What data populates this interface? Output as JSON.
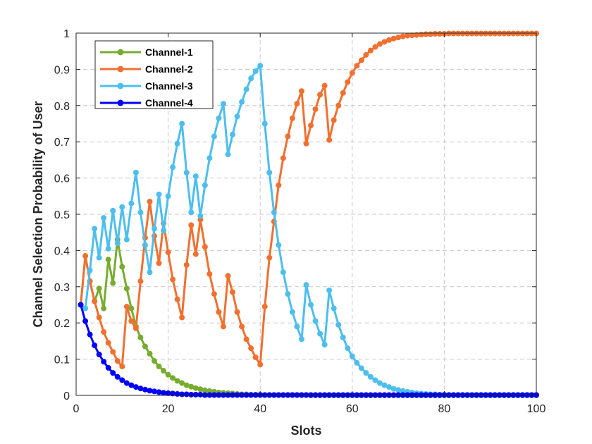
{
  "chart_data": {
    "type": "line",
    "title": "",
    "xlabel": "Slots",
    "ylabel": "Channel Selection Probability of User",
    "xlim": [
      0,
      100
    ],
    "ylim": [
      0,
      1
    ],
    "xticks": [
      "0",
      "20",
      "40",
      "60",
      "80",
      "100"
    ],
    "yticks": [
      "0",
      "0.1",
      "0.2",
      "0.3",
      "0.4",
      "0.5",
      "0.6",
      "0.7",
      "0.8",
      "0.9",
      "1"
    ],
    "grid": true,
    "legend_position": "top-left",
    "x": [
      1,
      2,
      3,
      4,
      5,
      6,
      7,
      8,
      9,
      10,
      11,
      12,
      13,
      14,
      15,
      16,
      17,
      18,
      19,
      20,
      21,
      22,
      23,
      24,
      25,
      26,
      27,
      28,
      29,
      30,
      31,
      32,
      33,
      34,
      35,
      36,
      37,
      38,
      39,
      40,
      41,
      42,
      43,
      44,
      45,
      46,
      47,
      48,
      49,
      50,
      51,
      52,
      53,
      54,
      55,
      56,
      57,
      58,
      59,
      60,
      61,
      62,
      63,
      64,
      65,
      66,
      67,
      68,
      69,
      70,
      71,
      72,
      73,
      74,
      75,
      76,
      77,
      78,
      79,
      80,
      81,
      82,
      83,
      84,
      85,
      86,
      87,
      88,
      89,
      90,
      91,
      92,
      93,
      94,
      95,
      96,
      97,
      98,
      99,
      100
    ],
    "series": [
      {
        "name": "Channel-1",
        "color": "#77AC30",
        "values": [
          0.25,
          0.385,
          0.315,
          0.26,
          0.295,
          0.24,
          0.375,
          0.31,
          0.43,
          0.355,
          0.295,
          0.24,
          0.19,
          0.16,
          0.135,
          0.115,
          0.095,
          0.08,
          0.068,
          0.057,
          0.048,
          0.04,
          0.034,
          0.028,
          0.024,
          0.02,
          0.017,
          0.014,
          0.012,
          0.01,
          0.008,
          0.007,
          0.006,
          0.005,
          0.004,
          0.003,
          0.003,
          0.002,
          0.002,
          0.002,
          0.001,
          0.001,
          0.001,
          0.001,
          0.001,
          0.001,
          0.001,
          0.001,
          0.001,
          0.001,
          0,
          0,
          0,
          0,
          0,
          0,
          0,
          0,
          0,
          0,
          0,
          0,
          0,
          0,
          0,
          0,
          0,
          0,
          0,
          0,
          0,
          0,
          0,
          0,
          0,
          0,
          0,
          0,
          0,
          0,
          0,
          0,
          0,
          0,
          0,
          0,
          0,
          0,
          0,
          0,
          0,
          0,
          0,
          0,
          0,
          0,
          0,
          0,
          0,
          0
        ]
      },
      {
        "name": "Channel-2",
        "color": "#F07030",
        "values": [
          0.25,
          0.385,
          0.315,
          0.26,
          0.215,
          0.175,
          0.145,
          0.12,
          0.095,
          0.08,
          0.245,
          0.205,
          0.185,
          0.315,
          0.435,
          0.535,
          0.44,
          0.365,
          0.475,
          0.395,
          0.32,
          0.265,
          0.215,
          0.36,
          0.47,
          0.39,
          0.485,
          0.41,
          0.335,
          0.28,
          0.23,
          0.19,
          0.33,
          0.285,
          0.23,
          0.19,
          0.155,
          0.13,
          0.105,
          0.085,
          0.245,
          0.38,
          0.48,
          0.58,
          0.655,
          0.715,
          0.765,
          0.805,
          0.84,
          0.695,
          0.745,
          0.79,
          0.83,
          0.855,
          0.705,
          0.76,
          0.8,
          0.835,
          0.865,
          0.89,
          0.91,
          0.925,
          0.94,
          0.952,
          0.962,
          0.97,
          0.976,
          0.981,
          0.985,
          0.988,
          0.991,
          0.993,
          0.994,
          0.995,
          0.996,
          0.997,
          0.997,
          0.998,
          0.998,
          0.998,
          0.999,
          0.999,
          0.999,
          0.999,
          0.999,
          0.999,
          0.999,
          0.999,
          0.999,
          0.999,
          0.999,
          0.999,
          0.999,
          0.999,
          0.999,
          0.999,
          0.999,
          0.999,
          0.999,
          0.999
        ]
      },
      {
        "name": "Channel-3",
        "color": "#4DBEEE",
        "values": [
          0.25,
          0.24,
          0.345,
          0.46,
          0.38,
          0.49,
          0.405,
          0.51,
          0.42,
          0.52,
          0.43,
          0.53,
          0.615,
          0.505,
          0.415,
          0.34,
          0.46,
          0.555,
          0.455,
          0.55,
          0.63,
          0.695,
          0.75,
          0.615,
          0.505,
          0.605,
          0.495,
          0.58,
          0.655,
          0.715,
          0.765,
          0.805,
          0.665,
          0.72,
          0.77,
          0.81,
          0.845,
          0.875,
          0.895,
          0.91,
          0.75,
          0.615,
          0.505,
          0.415,
          0.34,
          0.28,
          0.23,
          0.19,
          0.155,
          0.305,
          0.25,
          0.205,
          0.17,
          0.14,
          0.29,
          0.24,
          0.195,
          0.16,
          0.13,
          0.108,
          0.09,
          0.075,
          0.062,
          0.051,
          0.042,
          0.034,
          0.028,
          0.023,
          0.018,
          0.015,
          0.012,
          0.01,
          0.008,
          0.006,
          0.005,
          0.004,
          0.003,
          0.003,
          0.002,
          0.002,
          0.001,
          0.001,
          0.001,
          0.001,
          0.001,
          0.001,
          0.001,
          0.001,
          0.001,
          0.001,
          0.001,
          0.001,
          0.001,
          0.001,
          0.001,
          0.001,
          0.001,
          0.001,
          0.001,
          0.001
        ]
      },
      {
        "name": "Channel-4",
        "color": "#0000FF",
        "values": [
          0.25,
          0.205,
          0.168,
          0.138,
          0.113,
          0.093,
          0.076,
          0.062,
          0.051,
          0.042,
          0.034,
          0.028,
          0.023,
          0.019,
          0.016,
          0.013,
          0.011,
          0.009,
          0.007,
          0.006,
          0.005,
          0.004,
          0.003,
          0.003,
          0.002,
          0.002,
          0.002,
          0.001,
          0.001,
          0.001,
          0.001,
          0.001,
          0.001,
          0.001,
          0.001,
          0.001,
          0.001,
          0.001,
          0.001,
          0.001,
          0.001,
          0.001,
          0.001,
          0.001,
          0.001,
          0.001,
          0.001,
          0.001,
          0.001,
          0.001,
          0.001,
          0.001,
          0.001,
          0.001,
          0.001,
          0.001,
          0.001,
          0.001,
          0.001,
          0.001,
          0.001,
          0.001,
          0.001,
          0.001,
          0.001,
          0.001,
          0.001,
          0.001,
          0.001,
          0.001,
          0.001,
          0.001,
          0.001,
          0.001,
          0.001,
          0.001,
          0.001,
          0.001,
          0.001,
          0.001,
          0.001,
          0.001,
          0.001,
          0.001,
          0.001,
          0.001,
          0.001,
          0.001,
          0.001,
          0.001,
          0.001,
          0.001,
          0.001,
          0.001,
          0.001,
          0.001,
          0.001,
          0.001,
          0.001,
          0.001
        ]
      }
    ]
  }
}
